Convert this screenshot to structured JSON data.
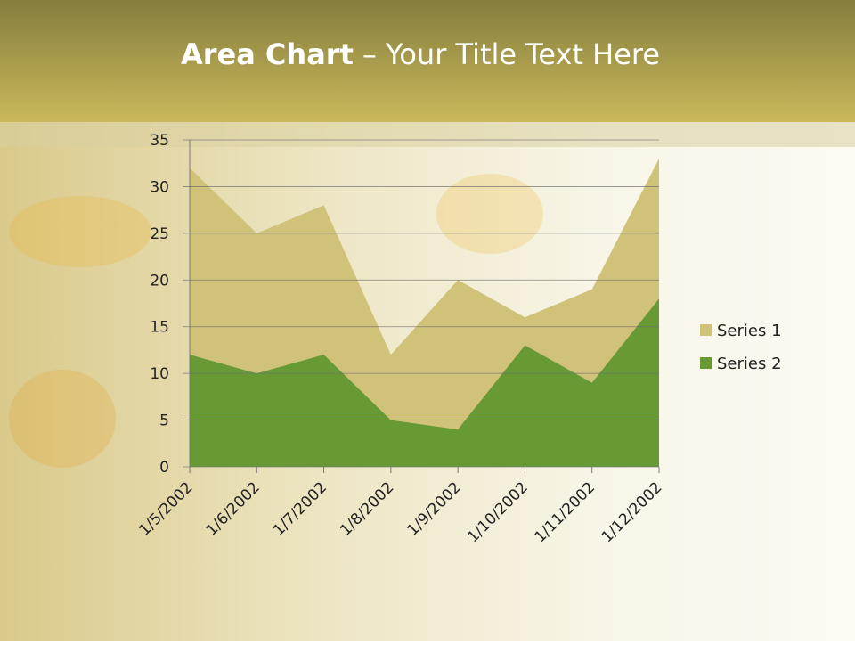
{
  "chart_data": {
    "type": "area",
    "title_parts": [
      "Area Chart",
      "– Your Title Text Here"
    ],
    "categories": [
      "1/5/2002",
      "1/6/2002",
      "1/7/2002",
      "1/8/2002",
      "1/9/2002",
      "1/10/2002",
      "1/11/2002",
      "1/12/2002"
    ],
    "series": [
      {
        "name": "Series 1",
        "color": "#d0c279",
        "values": [
          32,
          25,
          28,
          12,
          20,
          16,
          19,
          33
        ]
      },
      {
        "name": "Series 2",
        "color": "#679a35",
        "values": [
          12,
          10,
          12,
          5,
          4,
          13,
          9,
          18
        ]
      }
    ],
    "ylim": [
      0,
      35
    ],
    "yticks": [
      0,
      5,
      10,
      15,
      20,
      25,
      30,
      35
    ],
    "grid": true,
    "legend": "right"
  }
}
